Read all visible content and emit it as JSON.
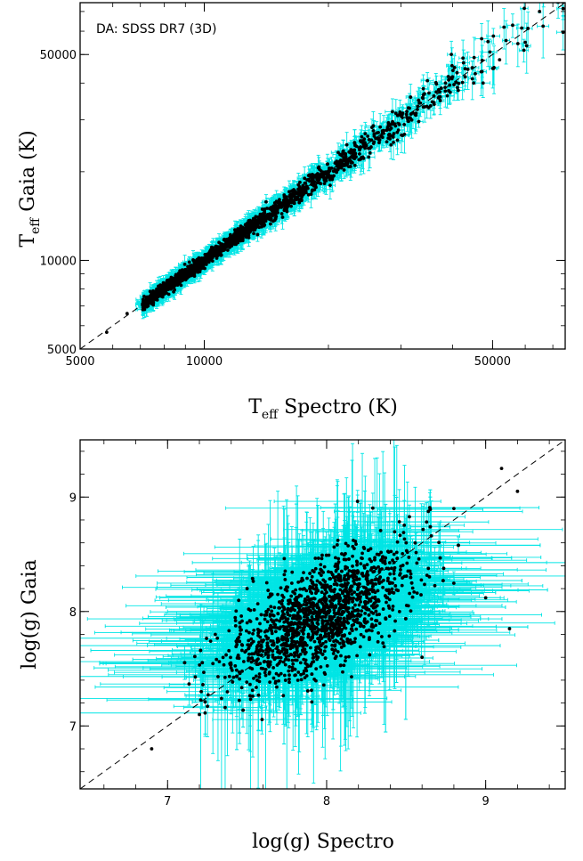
{
  "chart_data": [
    {
      "type": "scatter",
      "annotation": "DA: SDSS DR7 (3D)",
      "xlabel": {
        "main": "T",
        "sub": "eff",
        "rest": " Spectro (K)"
      },
      "ylabel": {
        "main": "T",
        "sub": "eff",
        "rest": " Gaia (K)"
      },
      "xscale": "log",
      "yscale": "log",
      "xlim": [
        5000,
        75000
      ],
      "ylim": [
        5000,
        75000
      ],
      "xticks": [
        5000,
        10000,
        50000
      ],
      "xtick_labels": [
        "5000",
        "10000",
        "50000"
      ],
      "yticks": [
        5000,
        10000,
        50000
      ],
      "ytick_labels": [
        "5000",
        "10000",
        "50000"
      ],
      "reference_line": "y = x (dashed)",
      "error_bar_color": "#00e5e5",
      "point_color": "#000000",
      "sample_points": [
        [
          5800,
          5700
        ],
        [
          6500,
          6600
        ],
        [
          7200,
          7000
        ],
        [
          8000,
          8100
        ],
        [
          9000,
          9100
        ],
        [
          10000,
          10200
        ],
        [
          11000,
          10800
        ],
        [
          12500,
          12700
        ],
        [
          14000,
          14500
        ],
        [
          16000,
          15500
        ],
        [
          18000,
          18600
        ],
        [
          20000,
          19500
        ],
        [
          22000,
          23000
        ],
        [
          25000,
          24000
        ],
        [
          28000,
          29000
        ],
        [
          30000,
          31000
        ],
        [
          35000,
          33000
        ],
        [
          40000,
          42000
        ],
        [
          45000,
          40000
        ],
        [
          52000,
          48000
        ],
        [
          60000,
          55000
        ],
        [
          65000,
          70000
        ]
      ]
    },
    {
      "type": "scatter",
      "xlabel": "log(g) Spectro",
      "ylabel": "log(g) Gaia",
      "xlim": [
        6.45,
        9.5
      ],
      "ylim": [
        6.45,
        9.5
      ],
      "xticks": [
        7,
        8,
        9
      ],
      "xtick_labels": [
        "7",
        "8",
        "9"
      ],
      "yticks": [
        7,
        8,
        9
      ],
      "ytick_labels": [
        "7",
        "8",
        "9"
      ],
      "reference_line": "y = x (dashed)",
      "error_bar_color": "#00e5e5",
      "point_color": "#000000",
      "sample_points": [
        [
          7.95,
          7.95
        ],
        [
          7.9,
          7.85
        ],
        [
          8.0,
          8.05
        ],
        [
          7.8,
          7.9
        ],
        [
          8.1,
          8.0
        ],
        [
          7.6,
          7.5
        ],
        [
          8.3,
          8.35
        ],
        [
          8.5,
          8.6
        ],
        [
          7.2,
          7.1
        ],
        [
          8.8,
          8.9
        ],
        [
          9.1,
          9.25
        ],
        [
          9.2,
          9.05
        ],
        [
          9.0,
          8.12
        ],
        [
          9.15,
          7.85
        ],
        [
          7.3,
          7.8
        ],
        [
          8.6,
          7.6
        ],
        [
          7.5,
          8.2
        ],
        [
          6.9,
          6.8
        ]
      ]
    }
  ]
}
